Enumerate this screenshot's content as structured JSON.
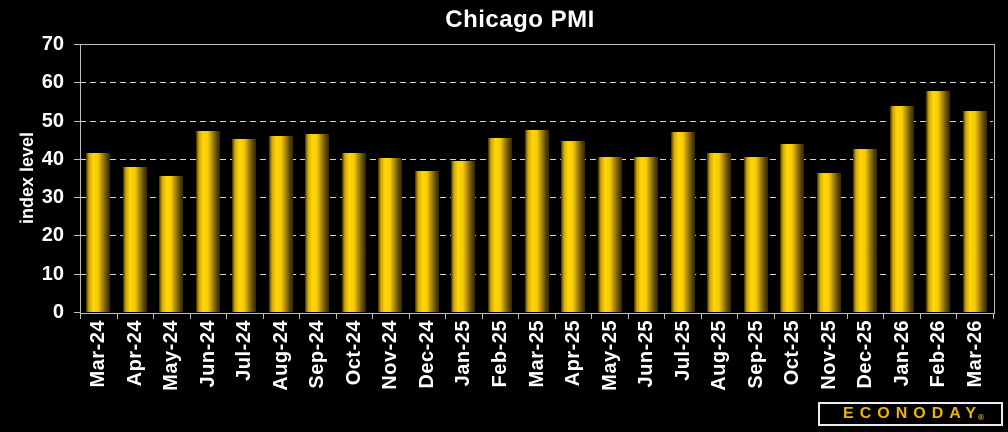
{
  "chart_data": {
    "type": "bar",
    "title": "Chicago PMI",
    "xlabel": "",
    "ylabel": "index level",
    "categories": [
      "Mar-24",
      "Apr-24",
      "May-24",
      "Jun-24",
      "Jul-24",
      "Aug-24",
      "Sep-24",
      "Oct-24",
      "Nov-24",
      "Dec-24",
      "Jan-25",
      "Feb-25",
      "Mar-25",
      "Apr-25",
      "May-25",
      "Jun-25",
      "Jul-25",
      "Aug-25",
      "Sep-25",
      "Oct-25",
      "Nov-25",
      "Dec-25",
      "Jan-26",
      "Feb-26",
      "Mar-26"
    ],
    "values": [
      41.4,
      37.9,
      35.4,
      47.4,
      45.3,
      46.1,
      46.6,
      41.6,
      40.2,
      36.9,
      39.5,
      45.5,
      47.6,
      44.6,
      40.5,
      40.4,
      47.1,
      41.5,
      40.6,
      43.8,
      36.2,
      42.7,
      53.9,
      57.6,
      52.6
    ],
    "ylim": [
      0,
      70
    ],
    "yticks": [
      0,
      10,
      20,
      30,
      40,
      50,
      60,
      70
    ],
    "grid": "horizontal-dashed",
    "legend": "none",
    "bar_style": "gold-cylinder-gradient"
  },
  "branding": {
    "logo_text": "ECONODAY",
    "registered_mark": "®"
  },
  "colors": {
    "background": "#000000",
    "text": "#ffffff",
    "axis": "#bdbdbd",
    "gridline": "#d4d4d4",
    "bar_bright": "#ffd60a",
    "bar_dark": "#3a2e00",
    "logo_gold": "#efb310",
    "logo_border": "#ececec"
  }
}
